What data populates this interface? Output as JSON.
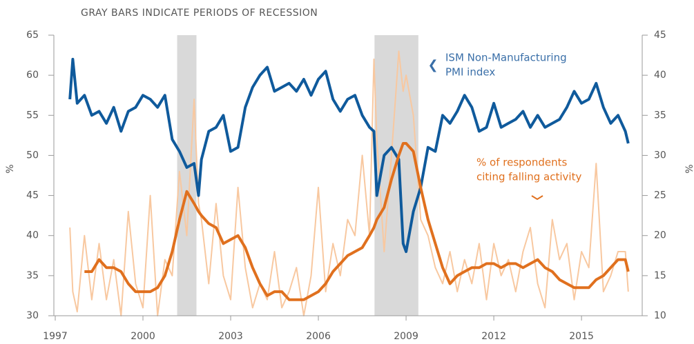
{
  "chart_data": {
    "type": "line",
    "title": "GRAY BARS INDICATE PERIODS OF RECESSION",
    "ylabel": "%",
    "y2label": "%",
    "xlim": [
      1997,
      2017.1
    ],
    "xticks": [
      1997,
      2000,
      2003,
      2006,
      2009,
      2012,
      2015
    ],
    "ylim": [
      30,
      65
    ],
    "yticks": [
      30,
      35,
      40,
      45,
      50,
      55,
      60,
      65
    ],
    "y2lim": [
      10,
      45
    ],
    "y2ticks": [
      10,
      15,
      20,
      25,
      30,
      35,
      40,
      45
    ],
    "recessions": [
      [
        2001.17,
        2001.83
      ],
      [
        2007.92,
        2009.42
      ]
    ],
    "recession_color": "#d9d9d9",
    "annotations": [
      {
        "lines": [
          "ISM Non-Manufacturing",
          "PMI index"
        ],
        "color": "#3a6fa8"
      },
      {
        "lines": [
          "% of respondents",
          "citing falling activity"
        ],
        "color": "#e0701e"
      }
    ],
    "x": [
      1997.5,
      1997.6,
      1997.75,
      1998,
      1998.25,
      1998.5,
      1998.75,
      1999,
      1999.25,
      1999.5,
      1999.75,
      2000,
      2000.25,
      2000.5,
      2000.75,
      2001,
      2001.25,
      2001.5,
      2001.75,
      2001.9,
      2002,
      2002.25,
      2002.5,
      2002.75,
      2003,
      2003.25,
      2003.5,
      2003.75,
      2004,
      2004.25,
      2004.5,
      2004.75,
      2005,
      2005.25,
      2005.5,
      2005.75,
      2006,
      2006.25,
      2006.5,
      2006.75,
      2007,
      2007.25,
      2007.5,
      2007.75,
      2007.9,
      2008,
      2008.25,
      2008.5,
      2008.75,
      2008.9,
      2009,
      2009.25,
      2009.5,
      2009.75,
      2010,
      2010.25,
      2010.5,
      2010.75,
      2011,
      2011.25,
      2011.5,
      2011.75,
      2012,
      2012.25,
      2012.5,
      2012.75,
      2013,
      2013.25,
      2013.5,
      2013.75,
      2014,
      2014.25,
      2014.5,
      2014.75,
      2015,
      2015.25,
      2015.5,
      2015.75,
      2016,
      2016.25,
      2016.5,
      2016.6
    ],
    "series": [
      {
        "color": "#f8c8a0",
        "width": 2,
        "axis": "y2",
        "values": [
          21,
          13,
          10.5,
          20,
          12,
          19,
          12,
          17,
          10,
          23,
          14,
          11,
          25,
          10,
          17,
          15,
          28,
          20,
          37,
          24,
          22,
          14,
          24,
          15,
          12,
          26,
          16,
          11,
          14,
          12,
          18,
          11,
          13,
          16,
          10,
          15,
          26,
          13,
          19,
          15,
          22,
          20,
          30,
          20,
          42,
          32,
          18,
          30,
          43,
          38,
          40,
          35,
          22,
          20,
          16,
          14,
          18,
          13,
          17,
          14,
          19,
          12,
          19,
          15,
          17,
          13,
          18,
          21,
          14,
          11,
          22,
          17,
          19,
          12,
          18,
          16,
          29,
          13,
          15,
          18,
          18,
          13
        ]
      },
      {
        "color": "#0f5a9c",
        "width": 4,
        "values": [
          57,
          62,
          56.5,
          57.5,
          55,
          55.5,
          54,
          56,
          53,
          55.5,
          56,
          57.5,
          57,
          56,
          57.5,
          52,
          50.5,
          48.5,
          49,
          45,
          49.5,
          53,
          53.5,
          55,
          50.5,
          51,
          56,
          58.5,
          60,
          61,
          58,
          58.5,
          59,
          58,
          59.5,
          57.5,
          59.5,
          60.5,
          57,
          55.5,
          57,
          57.5,
          55,
          53.5,
          53,
          45,
          50,
          51,
          49.5,
          39,
          38,
          43,
          46,
          51,
          50.5,
          55,
          54,
          55.5,
          57.5,
          56,
          53,
          53.5,
          56.5,
          53.5,
          54,
          54.5,
          55.5,
          53.5,
          55,
          53.5,
          54,
          54.5,
          56,
          58,
          56.5,
          57,
          59,
          56,
          54,
          55,
          53,
          51.5
        ]
      },
      {
        "color": "#e0701e",
        "width": 4,
        "axis": "y2",
        "values": [
          null,
          null,
          null,
          15.5,
          15.5,
          17,
          16,
          16,
          15.5,
          14,
          13,
          13,
          13,
          13.5,
          15,
          18,
          22,
          25.5,
          24,
          23,
          22.5,
          21.5,
          21,
          19,
          19.5,
          20,
          18.5,
          16,
          14,
          12.5,
          13,
          13,
          12,
          12,
          12,
          12.5,
          13,
          14,
          15.5,
          16.5,
          17.5,
          18,
          18.5,
          20,
          21,
          22,
          23.5,
          27,
          30,
          31.5,
          31.5,
          30.5,
          26,
          22,
          19,
          16,
          14,
          15,
          15.5,
          16,
          16,
          16.5,
          16.5,
          16,
          16.5,
          16.5,
          16,
          16.5,
          17,
          16,
          15.5,
          14.5,
          14,
          13.5,
          13.5,
          13.5,
          14.5,
          15,
          16,
          17,
          17,
          15.5
        ]
      }
    ]
  }
}
